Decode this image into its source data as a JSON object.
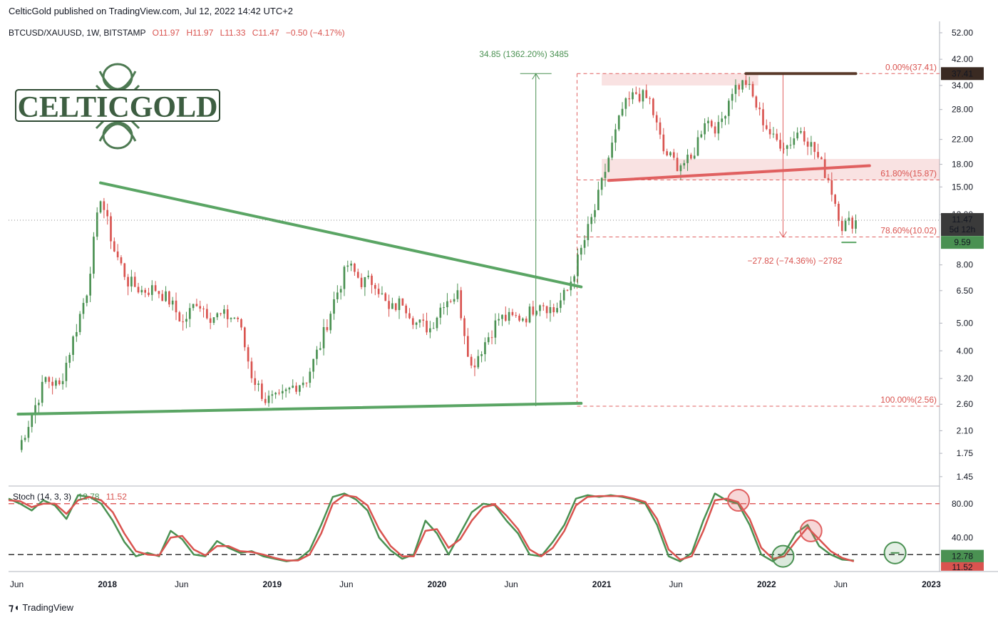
{
  "header": {
    "published": "CelticGold published on TradingView.com, Jul 12, 2022 14:42 UTC+2"
  },
  "footer": {
    "brand_icon": "tradingview-logo-icon",
    "brand": "TradingView"
  },
  "logo": {
    "text": "CELTICGOLD",
    "icon": "celtic-knot-icon"
  },
  "colors": {
    "up": "#4a9152",
    "down": "#d9534f",
    "green_line": "#5aa564",
    "red_line": "#e06060",
    "price_bg": "#3a3a3a",
    "tick": "#131722"
  },
  "chart_data": [
    {
      "type": "candlestick",
      "symbol_line": {
        "symbol": "BTCUSD/XAUUSD, 1W, BITSTAMP",
        "o": "O11.97",
        "h": "H11.97",
        "l": "L11.33",
        "c": "C11.47",
        "change": "−0.50 (−4.17%)"
      },
      "y_scale": "log",
      "y_ticks": [
        "52.00",
        "42.00",
        "34.00",
        "28.00",
        "22.00",
        "18.00",
        "15.00",
        "12.00",
        "8.00",
        "6.50",
        "5.00",
        "4.00",
        "3.20",
        "2.60",
        "2.10",
        "1.75",
        "1.45"
      ],
      "x_ticks": [
        "Jun",
        "2018",
        "Jun",
        "2019",
        "Jun",
        "2020",
        "Jun",
        "2021",
        "Jun",
        "2022",
        "Jun",
        "2023"
      ],
      "price_path_anchors": [
        [
          "2017-06",
          1.8
        ],
        [
          "2017-07",
          2.4
        ],
        [
          "2017-08",
          3.2
        ],
        [
          "2017-09",
          3.0
        ],
        [
          "2017-10",
          4.4
        ],
        [
          "2017-11",
          6.5
        ],
        [
          "2017-12",
          14.0
        ],
        [
          "2018-01",
          9.0
        ],
        [
          "2018-02",
          7.0
        ],
        [
          "2018-03",
          6.5
        ],
        [
          "2018-04",
          6.6
        ],
        [
          "2018-05",
          6.0
        ],
        [
          "2018-06",
          5.0
        ],
        [
          "2018-07",
          6.0
        ],
        [
          "2018-08",
          5.3
        ],
        [
          "2018-09",
          5.3
        ],
        [
          "2018-10",
          5.2
        ],
        [
          "2018-11",
          3.3
        ],
        [
          "2018-12",
          2.7
        ],
        [
          "2019-01",
          2.7
        ],
        [
          "2019-02",
          3.0
        ],
        [
          "2019-03",
          3.2
        ],
        [
          "2019-04",
          4.2
        ],
        [
          "2019-05",
          6.0
        ],
        [
          "2019-06",
          8.0
        ],
        [
          "2019-07",
          7.0
        ],
        [
          "2019-08",
          7.0
        ],
        [
          "2019-09",
          5.5
        ],
        [
          "2019-10",
          6.0
        ],
        [
          "2019-11",
          5.0
        ],
        [
          "2019-12",
          4.8
        ],
        [
          "2020-01",
          6.0
        ],
        [
          "2020-02",
          6.3
        ],
        [
          "2020-03",
          3.5
        ],
        [
          "2020-04",
          4.3
        ],
        [
          "2020-05",
          5.2
        ],
        [
          "2020-06",
          5.2
        ],
        [
          "2020-07",
          5.3
        ],
        [
          "2020-08",
          6.0
        ],
        [
          "2020-09",
          5.5
        ],
        [
          "2020-10",
          6.5
        ],
        [
          "2020-11",
          9.0
        ],
        [
          "2020-12",
          12.5
        ],
        [
          "2021-01",
          19.0
        ],
        [
          "2021-02",
          28.0
        ],
        [
          "2021-03",
          32.0
        ],
        [
          "2021-04",
          30.0
        ],
        [
          "2021-05",
          20.0
        ],
        [
          "2021-06",
          18.0
        ],
        [
          "2021-07",
          18.5
        ],
        [
          "2021-08",
          26.0
        ],
        [
          "2021-09",
          24.0
        ],
        [
          "2021-10",
          33.0
        ],
        [
          "2021-11",
          35.0
        ],
        [
          "2021-12",
          27.0
        ],
        [
          "2022-01",
          22.0
        ],
        [
          "2022-02",
          21.0
        ],
        [
          "2022-03",
          24.0
        ],
        [
          "2022-04",
          20.0
        ],
        [
          "2022-05",
          16.0
        ],
        [
          "2022-06",
          11.0
        ],
        [
          "2022-07",
          11.47
        ]
      ],
      "last_price": "11.47",
      "countdown": "5d 12h",
      "price_labels": [
        "37.41",
        "9.59"
      ],
      "fibonacci": [
        {
          "label": "0.00%(37.41)",
          "value": 37.41
        },
        {
          "label": "61.80%(15.87)",
          "value": 15.87
        },
        {
          "label": "78.60%(10.02)",
          "value": 10.02
        },
        {
          "label": "100.00%(2.56)",
          "value": 2.56
        }
      ],
      "measure_up": "34.85 (1362.20%) 3485",
      "measure_down": "−27.82 (−74.36%) −2782",
      "trendlines": [
        {
          "name": "upper-triangle-line",
          "from": [
            "2017-12",
            15.5
          ],
          "to": [
            "2020-11",
            6.7
          ]
        },
        {
          "name": "lower-triangle-line",
          "from": [
            "2017-06",
            2.4
          ],
          "to": [
            "2020-11",
            2.62
          ]
        },
        {
          "name": "neckline",
          "from": [
            "2021-01",
            15.8
          ],
          "to": [
            "2022-08",
            17.8
          ]
        },
        {
          "name": "top-line",
          "from": [
            "2021-11",
            37.41
          ],
          "to": [
            "2022-07",
            37.41
          ]
        },
        {
          "name": "support-line",
          "from": [
            "2022-06",
            9.59
          ],
          "to": [
            "2022-07",
            9.59
          ]
        }
      ]
    },
    {
      "type": "line",
      "title": "Stoch (14, 3, 3)",
      "k_value": "12.78",
      "d_value": "11.52",
      "y_ticks": [
        "80.00",
        "40.00"
      ],
      "levels": [
        80,
        20
      ],
      "series": [
        {
          "name": "%K",
          "color": "#4a9152",
          "values": [
            86,
            80,
            72,
            84,
            78,
            62,
            90,
            88,
            80,
            60,
            35,
            18,
            22,
            18,
            48,
            38,
            20,
            18,
            36,
            28,
            22,
            24,
            18,
            15,
            12,
            14,
            25,
            55,
            88,
            92,
            85,
            72,
            40,
            25,
            15,
            20,
            60,
            45,
            20,
            45,
            70,
            80,
            78,
            60,
            45,
            20,
            18,
            35,
            55,
            86,
            90,
            88,
            90,
            88,
            85,
            80,
            55,
            18,
            12,
            22,
            60,
            92,
            84,
            80,
            55,
            20,
            12,
            22,
            45,
            55,
            30,
            20,
            14,
            13
          ]
        },
        {
          "name": "%D",
          "color": "#d9534f",
          "values": [
            84,
            83,
            76,
            80,
            80,
            68,
            84,
            88,
            84,
            70,
            45,
            24,
            20,
            19,
            40,
            42,
            26,
            19,
            30,
            30,
            24,
            23,
            20,
            16,
            13,
            13,
            20,
            45,
            80,
            90,
            88,
            78,
            50,
            30,
            18,
            18,
            48,
            50,
            28,
            38,
            60,
            76,
            79,
            66,
            50,
            26,
            18,
            28,
            48,
            78,
            88,
            89,
            89,
            89,
            86,
            82,
            62,
            26,
            14,
            18,
            48,
            84,
            86,
            82,
            62,
            28,
            15,
            18,
            36,
            52,
            38,
            24,
            16,
            12
          ]
        }
      ]
    }
  ]
}
